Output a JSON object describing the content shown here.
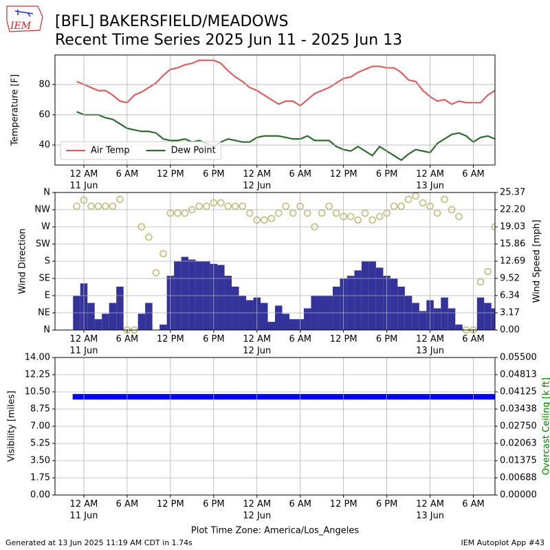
{
  "header": {
    "title": [
      "[BFL] BAKERSFIELD/MEADOWS",
      "Recent Time Series 2025 Jun 11 - 2025 Jun 13"
    ],
    "logo": "IEM"
  },
  "footer": {
    "left": "Generated at 13 Jun 2025 11:19 AM CDT in 1.74s",
    "right": "IEM Autoplot App #43"
  },
  "chart_data": [
    {
      "type": "line",
      "ylabel": "Temperature [F]",
      "grid": true,
      "legend": "lower left",
      "xlim": [
        "2025-06-10 20:00",
        "2025-06-13 09:00"
      ],
      "xticks": [
        {
          "value": "2025-06-11 00:00",
          "label": "12 AM\n11 Jun"
        },
        {
          "value": "2025-06-11 06:00",
          "label": "6 AM"
        },
        {
          "value": "2025-06-11 12:00",
          "label": "12 PM"
        },
        {
          "value": "2025-06-11 18:00",
          "label": "6 PM"
        },
        {
          "value": "2025-06-12 00:00",
          "label": "12 AM\n12 Jun"
        },
        {
          "value": "2025-06-12 06:00",
          "label": "6 AM"
        },
        {
          "value": "2025-06-12 12:00",
          "label": "12 PM"
        },
        {
          "value": "2025-06-12 18:00",
          "label": "6 PM"
        },
        {
          "value": "2025-06-13 00:00",
          "label": "12 AM\n13 Jun"
        },
        {
          "value": "2025-06-13 06:00",
          "label": "6 AM"
        }
      ],
      "ylim": [
        26.8,
        99.5
      ],
      "yticks": [
        40,
        60,
        80
      ],
      "x": [
        "2025-06-10 23:00",
        "2025-06-11 00:00",
        "2025-06-11 01:00",
        "2025-06-11 02:00",
        "2025-06-11 03:00",
        "2025-06-11 04:00",
        "2025-06-11 05:00",
        "2025-06-11 06:00",
        "2025-06-11 07:00",
        "2025-06-11 08:00",
        "2025-06-11 09:00",
        "2025-06-11 10:00",
        "2025-06-11 11:00",
        "2025-06-11 12:00",
        "2025-06-11 13:00",
        "2025-06-11 14:00",
        "2025-06-11 15:00",
        "2025-06-11 16:00",
        "2025-06-11 17:00",
        "2025-06-11 18:00",
        "2025-06-11 19:00",
        "2025-06-11 20:00",
        "2025-06-11 21:00",
        "2025-06-11 22:00",
        "2025-06-11 23:00",
        "2025-06-12 00:00",
        "2025-06-12 01:00",
        "2025-06-12 02:00",
        "2025-06-12 03:00",
        "2025-06-12 04:00",
        "2025-06-12 05:00",
        "2025-06-12 06:00",
        "2025-06-12 07:00",
        "2025-06-12 08:00",
        "2025-06-12 09:00",
        "2025-06-12 10:00",
        "2025-06-12 11:00",
        "2025-06-12 12:00",
        "2025-06-12 13:00",
        "2025-06-12 14:00",
        "2025-06-12 15:00",
        "2025-06-12 16:00",
        "2025-06-12 17:00",
        "2025-06-12 18:00",
        "2025-06-12 19:00",
        "2025-06-12 20:00",
        "2025-06-12 21:00",
        "2025-06-12 22:00",
        "2025-06-12 23:00",
        "2025-06-13 00:00",
        "2025-06-13 01:00",
        "2025-06-13 02:00",
        "2025-06-13 03:00",
        "2025-06-13 04:00",
        "2025-06-13 05:00",
        "2025-06-13 06:00",
        "2025-06-13 07:00",
        "2025-06-13 08:00",
        "2025-06-13 09:00"
      ],
      "series": [
        {
          "name": "Air Temp",
          "color": "#d65f5f",
          "values": [
            82,
            80,
            78,
            76,
            76,
            73,
            69,
            68,
            73,
            75,
            78,
            81,
            86,
            90,
            91,
            93,
            94,
            96,
            96,
            96,
            94,
            89,
            85,
            82,
            78,
            76,
            73,
            70,
            67,
            69,
            69,
            66,
            70,
            74,
            76,
            78,
            81,
            84,
            85,
            88,
            90,
            92,
            92,
            91,
            91,
            88,
            83,
            82,
            76,
            72,
            69,
            70,
            67,
            69,
            68,
            68,
            68,
            73,
            76
          ]
        },
        {
          "name": "Dew Point",
          "color": "#2e6930",
          "values": [
            62,
            60,
            60,
            60,
            58,
            57,
            54,
            51,
            50,
            49,
            49,
            48,
            44,
            43,
            43,
            44,
            42,
            43,
            41,
            39,
            42,
            44,
            43,
            42,
            42,
            45,
            46,
            46,
            46,
            45,
            44,
            44,
            46,
            43,
            43,
            43,
            39,
            37,
            36,
            39,
            36,
            33,
            39,
            36,
            33,
            30,
            34,
            37,
            36,
            35,
            41,
            44,
            47,
            48,
            46,
            42,
            45,
            46,
            44
          ]
        }
      ]
    },
    {
      "type": "combo",
      "ylabel": "Wind Direction",
      "y2label": "Wind Speed [mph]",
      "grid": true,
      "xlim": [
        "2025-06-10 20:00",
        "2025-06-13 09:00"
      ],
      "xticks": [
        {
          "value": "2025-06-11 00:00",
          "label": "12 AM\n11 Jun"
        },
        {
          "value": "2025-06-11 06:00",
          "label": "6 AM"
        },
        {
          "value": "2025-06-11 12:00",
          "label": "12 PM"
        },
        {
          "value": "2025-06-11 18:00",
          "label": "6 PM"
        },
        {
          "value": "2025-06-12 00:00",
          "label": "12 AM\n12 Jun"
        },
        {
          "value": "2025-06-12 06:00",
          "label": "6 AM"
        },
        {
          "value": "2025-06-12 12:00",
          "label": "12 PM"
        },
        {
          "value": "2025-06-12 18:00",
          "label": "6 PM"
        },
        {
          "value": "2025-06-13 00:00",
          "label": "12 AM\n13 Jun"
        },
        {
          "value": "2025-06-13 06:00",
          "label": "6 AM"
        }
      ],
      "ylim": [
        0,
        360
      ],
      "yticks": [
        {
          "value": 0,
          "label": "N"
        },
        {
          "value": 45,
          "label": "NE"
        },
        {
          "value": 90,
          "label": "E"
        },
        {
          "value": 135,
          "label": "SE"
        },
        {
          "value": 180,
          "label": "S"
        },
        {
          "value": 225,
          "label": "SW"
        },
        {
          "value": 270,
          "label": "W"
        },
        {
          "value": 315,
          "label": "NW"
        },
        {
          "value": 360,
          "label": "N"
        }
      ],
      "y2lim": [
        0,
        25.37
      ],
      "y2ticks": [
        {
          "value": 0,
          "label": "0.00"
        },
        3.17,
        6.34,
        9.52,
        12.69,
        15.86,
        19.03,
        {
          "value": 22.2,
          "label": "22.20"
        },
        25.37
      ],
      "x": [
        "2025-06-10 23:00",
        "2025-06-11 00:00",
        "2025-06-11 01:00",
        "2025-06-11 02:00",
        "2025-06-11 03:00",
        "2025-06-11 04:00",
        "2025-06-11 05:00",
        "2025-06-11 06:00",
        "2025-06-11 07:00",
        "2025-06-11 08:00",
        "2025-06-11 09:00",
        "2025-06-11 10:00",
        "2025-06-11 11:00",
        "2025-06-11 12:00",
        "2025-06-11 13:00",
        "2025-06-11 14:00",
        "2025-06-11 15:00",
        "2025-06-11 16:00",
        "2025-06-11 17:00",
        "2025-06-11 18:00",
        "2025-06-11 19:00",
        "2025-06-11 20:00",
        "2025-06-11 21:00",
        "2025-06-11 22:00",
        "2025-06-11 23:00",
        "2025-06-12 00:00",
        "2025-06-12 01:00",
        "2025-06-12 02:00",
        "2025-06-12 03:00",
        "2025-06-12 04:00",
        "2025-06-12 05:00",
        "2025-06-12 06:00",
        "2025-06-12 07:00",
        "2025-06-12 08:00",
        "2025-06-12 09:00",
        "2025-06-12 10:00",
        "2025-06-12 11:00",
        "2025-06-12 12:00",
        "2025-06-12 13:00",
        "2025-06-12 14:00",
        "2025-06-12 15:00",
        "2025-06-12 16:00",
        "2025-06-12 17:00",
        "2025-06-12 18:00",
        "2025-06-12 19:00",
        "2025-06-12 20:00",
        "2025-06-12 21:00",
        "2025-06-12 22:00",
        "2025-06-12 23:00",
        "2025-06-13 00:00",
        "2025-06-13 01:00",
        "2025-06-13 02:00",
        "2025-06-13 03:00",
        "2025-06-13 04:00",
        "2025-06-13 05:00",
        "2025-06-13 06:00",
        "2025-06-13 07:00",
        "2025-06-13 08:00",
        "2025-06-13 09:00"
      ],
      "series": [
        {
          "kind": "bar",
          "axis": "y2",
          "color": "#333399",
          "values": [
            6.3,
            8.6,
            5,
            2,
            3,
            5,
            8,
            0,
            0,
            3,
            5,
            0,
            1,
            10,
            12.7,
            13.5,
            13,
            12.7,
            12.7,
            12.2,
            12,
            10,
            8,
            6.3,
            5.5,
            6,
            5,
            1.5,
            4.5,
            3,
            2,
            2,
            4,
            6.3,
            6.3,
            6.3,
            8,
            9.5,
            10,
            11,
            12.7,
            12.7,
            11.5,
            10,
            9.5,
            8,
            6.3,
            5,
            3.5,
            5.5,
            4,
            6,
            4,
            1,
            0,
            0,
            6,
            5,
            4
          ]
        },
        {
          "kind": "scatter",
          "color": "#bcbc7a",
          "values": [
            324,
            340,
            324,
            324,
            324,
            324,
            342,
            0,
            0,
            270,
            243,
            150,
            200,
            306,
            306,
            306,
            315,
            324,
            324,
            333,
            333,
            324,
            324,
            324,
            306,
            288,
            288,
            292,
            306,
            324,
            306,
            324,
            306,
            270,
            306,
            324,
            306,
            297,
            297,
            288,
            306,
            288,
            297,
            306,
            324,
            324,
            342,
            351,
            333,
            324,
            306,
            342,
            315,
            297,
            0,
            0,
            126,
            153,
            270
          ]
        }
      ]
    },
    {
      "type": "scatter",
      "ylabel": "Visibility [miles]",
      "y2label": "Overcast Ceiling [k ft]",
      "y2label_color": "green",
      "xlabel": "Plot Time Zone: America/Los_Angeles",
      "grid": true,
      "xlim": [
        "2025-06-10 20:00",
        "2025-06-13 09:00"
      ],
      "xticks": [
        {
          "value": "2025-06-11 00:00",
          "label": "12 AM\n11 Jun"
        },
        {
          "value": "2025-06-11 06:00",
          "label": "6 AM"
        },
        {
          "value": "2025-06-11 12:00",
          "label": "12 PM"
        },
        {
          "value": "2025-06-11 18:00",
          "label": "6 PM"
        },
        {
          "value": "2025-06-12 00:00",
          "label": "12 AM\n12 Jun"
        },
        {
          "value": "2025-06-12 06:00",
          "label": "6 AM"
        },
        {
          "value": "2025-06-12 12:00",
          "label": "12 PM"
        },
        {
          "value": "2025-06-12 18:00",
          "label": "6 PM"
        },
        {
          "value": "2025-06-13 00:00",
          "label": "12 AM\n13 Jun"
        },
        {
          "value": "2025-06-13 06:00",
          "label": "6 AM"
        }
      ],
      "ylim": [
        0,
        14
      ],
      "yticks": [
        {
          "value": 0,
          "label": "0.00"
        },
        1.75,
        {
          "value": 3.5,
          "label": "3.50"
        },
        5.25,
        {
          "value": 7,
          "label": "7.00"
        },
        8.75,
        {
          "value": 10.5,
          "label": "10.50"
        },
        12.25,
        {
          "value": 14,
          "label": "14.00"
        }
      ],
      "y2lim": [
        0,
        0.055
      ],
      "y2ticks": [
        {
          "value": 0,
          "label": "0.00000"
        },
        0.00688,
        0.01375,
        0.02063,
        {
          "value": 0.0275,
          "label": "0.02750"
        },
        0.03438,
        0.04125,
        0.04813,
        {
          "value": 0.055,
          "label": "0.05500"
        }
      ],
      "x": [
        "2025-06-10 23:00",
        "2025-06-11 00:00",
        "2025-06-11 01:00",
        "2025-06-11 02:00",
        "2025-06-11 03:00",
        "2025-06-11 04:00",
        "2025-06-11 05:00",
        "2025-06-11 06:00",
        "2025-06-11 07:00",
        "2025-06-11 08:00",
        "2025-06-11 09:00",
        "2025-06-11 10:00",
        "2025-06-11 11:00",
        "2025-06-11 12:00",
        "2025-06-11 13:00",
        "2025-06-11 14:00",
        "2025-06-11 15:00",
        "2025-06-11 16:00",
        "2025-06-11 17:00",
        "2025-06-11 18:00",
        "2025-06-11 19:00",
        "2025-06-11 20:00",
        "2025-06-11 21:00",
        "2025-06-11 22:00",
        "2025-06-11 23:00",
        "2025-06-12 00:00",
        "2025-06-12 01:00",
        "2025-06-12 02:00",
        "2025-06-12 03:00",
        "2025-06-12 04:00",
        "2025-06-12 05:00",
        "2025-06-12 06:00",
        "2025-06-12 07:00",
        "2025-06-12 08:00",
        "2025-06-12 09:00",
        "2025-06-12 10:00",
        "2025-06-12 11:00",
        "2025-06-12 12:00",
        "2025-06-12 13:00",
        "2025-06-12 14:00",
        "2025-06-12 15:00",
        "2025-06-12 16:00",
        "2025-06-12 17:00",
        "2025-06-12 18:00",
        "2025-06-12 19:00",
        "2025-06-12 20:00",
        "2025-06-12 21:00",
        "2025-06-12 22:00",
        "2025-06-12 23:00",
        "2025-06-13 00:00",
        "2025-06-13 01:00",
        "2025-06-13 02:00",
        "2025-06-13 03:00",
        "2025-06-13 04:00",
        "2025-06-13 05:00",
        "2025-06-13 06:00",
        "2025-06-13 07:00",
        "2025-06-13 08:00",
        "2025-06-13 09:00"
      ],
      "series": [
        {
          "color": "#0000ff",
          "values": [
            10,
            10,
            10,
            10,
            10,
            10,
            10,
            10,
            10,
            10,
            10,
            10,
            10,
            10,
            10,
            10,
            10,
            10,
            10,
            10,
            10,
            10,
            10,
            10,
            10,
            10,
            10,
            10,
            10,
            10,
            10,
            10,
            10,
            10,
            10,
            10,
            10,
            10,
            10,
            10,
            10,
            10,
            10,
            10,
            10,
            10,
            10,
            10,
            10,
            10,
            10,
            10,
            10,
            10,
            10,
            10,
            10,
            10,
            10
          ]
        }
      ]
    }
  ]
}
